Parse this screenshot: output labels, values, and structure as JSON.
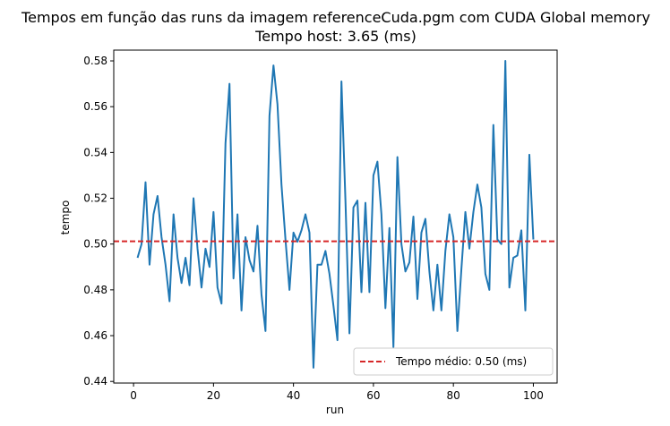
{
  "chart_data": {
    "type": "line",
    "title": "Tempos em função das runs da imagem referenceCuda.pgm com CUDA Global memory",
    "subtitle": "Tempo host: 3.65 (ms)",
    "xlabel": "run",
    "ylabel": "tempo",
    "xlim": [
      -4.95,
      105.95
    ],
    "ylim": [
      0.4393,
      0.5847
    ],
    "x_ticks": [
      0,
      20,
      40,
      60,
      80,
      100
    ],
    "y_ticks": [
      0.44,
      0.46,
      0.48,
      0.5,
      0.52,
      0.54,
      0.56,
      0.58
    ],
    "grid": false,
    "legend_position": "lower-right",
    "series": [
      {
        "color": "#1f77b4",
        "x": [
          1,
          2,
          3,
          4,
          5,
          6,
          7,
          8,
          9,
          10,
          11,
          12,
          13,
          14,
          15,
          16,
          17,
          18,
          19,
          20,
          21,
          22,
          23,
          24,
          25,
          26,
          27,
          28,
          29,
          30,
          31,
          32,
          33,
          34,
          35,
          36,
          37,
          38,
          39,
          40,
          41,
          42,
          43,
          44,
          45,
          46,
          47,
          48,
          49,
          50,
          51,
          52,
          53,
          54,
          55,
          56,
          57,
          58,
          59,
          60,
          61,
          62,
          63,
          64,
          65,
          66,
          67,
          68,
          69,
          70,
          71,
          72,
          73,
          74,
          75,
          76,
          77,
          78,
          79,
          80,
          81,
          82,
          83,
          84,
          85,
          86,
          87,
          88,
          89,
          90,
          91,
          92,
          93,
          94,
          95,
          96,
          97,
          98,
          99,
          100
        ],
        "values": [
          0.494,
          0.5,
          0.527,
          0.491,
          0.513,
          0.521,
          0.503,
          0.491,
          0.475,
          0.513,
          0.494,
          0.483,
          0.494,
          0.482,
          0.52,
          0.498,
          0.481,
          0.498,
          0.49,
          0.514,
          0.481,
          0.474,
          0.544,
          0.57,
          0.485,
          0.513,
          0.471,
          0.503,
          0.493,
          0.488,
          0.508,
          0.478,
          0.462,
          0.556,
          0.578,
          0.561,
          0.526,
          0.502,
          0.48,
          0.505,
          0.501,
          0.506,
          0.513,
          0.505,
          0.446,
          0.491,
          0.491,
          0.497,
          0.487,
          0.473,
          0.458,
          0.571,
          0.519,
          0.461,
          0.516,
          0.519,
          0.479,
          0.518,
          0.479,
          0.53,
          0.536,
          0.513,
          0.472,
          0.507,
          0.455,
          0.538,
          0.5,
          0.488,
          0.492,
          0.512,
          0.476,
          0.505,
          0.511,
          0.488,
          0.471,
          0.491,
          0.471,
          0.497,
          0.513,
          0.503,
          0.462,
          0.489,
          0.514,
          0.498,
          0.514,
          0.526,
          0.516,
          0.487,
          0.48,
          0.552,
          0.502,
          0.5,
          0.58,
          0.481,
          0.494,
          0.495,
          0.506,
          0.471,
          0.539,
          0.502
        ]
      }
    ],
    "reference_line": {
      "orientation": "horizontal",
      "y": 0.5012,
      "style": "dashed",
      "color": "#d62728",
      "label": "Tempo médio: 0.50 (ms)"
    }
  }
}
